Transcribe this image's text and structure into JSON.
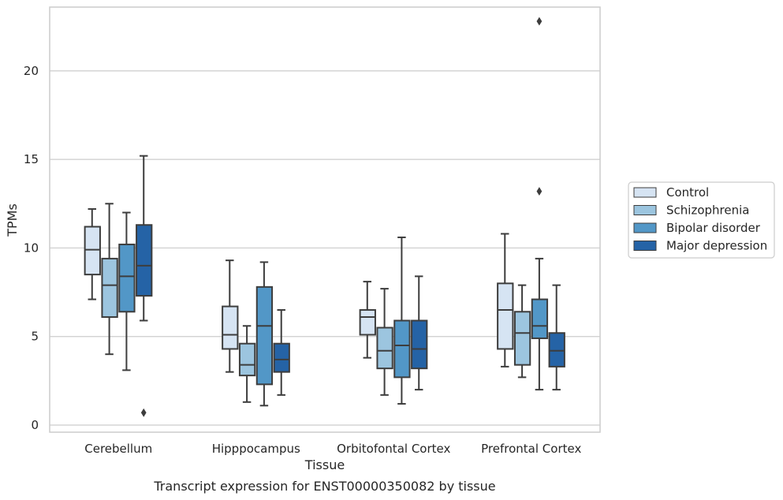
{
  "chart_data": {
    "type": "box",
    "title": "",
    "caption": "Transcript expression for ENST00000350082 by tissue",
    "xlabel": "Tissue",
    "ylabel": "TPMs",
    "ylim": [
      -0.4,
      23.6
    ],
    "yticks": [
      0,
      5,
      10,
      15,
      20
    ],
    "grid": "horizontal",
    "legend_position": "right",
    "categories": [
      "Cerebellum",
      "Hipppocampus",
      "Orbitofontal Cortex",
      "Prefrontal Cortex"
    ],
    "series": [
      {
        "name": "Control",
        "color": "#d6e4f3",
        "boxes": [
          {
            "whislo": 7.1,
            "q1": 8.5,
            "med": 9.9,
            "q3": 11.2,
            "whishi": 12.2,
            "fliers": []
          },
          {
            "whislo": 3.0,
            "q1": 4.3,
            "med": 5.1,
            "q3": 6.7,
            "whishi": 9.3,
            "fliers": []
          },
          {
            "whislo": 3.8,
            "q1": 5.1,
            "med": 6.1,
            "q3": 6.5,
            "whishi": 8.1,
            "fliers": []
          },
          {
            "whislo": 3.3,
            "q1": 4.3,
            "med": 6.5,
            "q3": 8.0,
            "whishi": 10.8,
            "fliers": []
          }
        ]
      },
      {
        "name": "Schizophrenia",
        "color": "#9cc5df",
        "boxes": [
          {
            "whislo": 4.0,
            "q1": 6.1,
            "med": 7.9,
            "q3": 9.4,
            "whishi": 12.5,
            "fliers": []
          },
          {
            "whislo": 1.3,
            "q1": 2.8,
            "med": 3.4,
            "q3": 4.6,
            "whishi": 5.6,
            "fliers": []
          },
          {
            "whislo": 1.7,
            "q1": 3.2,
            "med": 4.2,
            "q3": 5.5,
            "whishi": 7.7,
            "fliers": []
          },
          {
            "whislo": 2.7,
            "q1": 3.4,
            "med": 5.2,
            "q3": 6.4,
            "whishi": 7.9,
            "fliers": []
          }
        ]
      },
      {
        "name": "Bipolar disorder",
        "color": "#5297c7",
        "boxes": [
          {
            "whislo": 3.1,
            "q1": 6.4,
            "med": 8.4,
            "q3": 10.2,
            "whishi": 12.0,
            "fliers": []
          },
          {
            "whislo": 1.1,
            "q1": 2.3,
            "med": 5.6,
            "q3": 7.8,
            "whishi": 9.2,
            "fliers": []
          },
          {
            "whislo": 1.2,
            "q1": 2.7,
            "med": 4.5,
            "q3": 5.9,
            "whishi": 10.6,
            "fliers": []
          },
          {
            "whislo": 2.0,
            "q1": 4.9,
            "med": 5.6,
            "q3": 7.1,
            "whishi": 9.4,
            "fliers": [
              13.2,
              22.8
            ]
          }
        ]
      },
      {
        "name": "Major depression",
        "color": "#2563a6",
        "boxes": [
          {
            "whislo": 5.9,
            "q1": 7.3,
            "med": 9.0,
            "q3": 11.3,
            "whishi": 15.2,
            "fliers": [
              0.7
            ]
          },
          {
            "whislo": 1.7,
            "q1": 3.0,
            "med": 3.7,
            "q3": 4.6,
            "whishi": 6.5,
            "fliers": []
          },
          {
            "whislo": 2.0,
            "q1": 3.2,
            "med": 4.3,
            "q3": 5.9,
            "whishi": 8.4,
            "fliers": []
          },
          {
            "whislo": 2.0,
            "q1": 3.3,
            "med": 4.2,
            "q3": 5.2,
            "whishi": 7.9,
            "fliers": []
          }
        ]
      }
    ]
  },
  "colors": {
    "box_edge": "#3d3d3d",
    "grid": "#cccccc",
    "axes_frame": "#cccccc",
    "text": "#262626"
  }
}
